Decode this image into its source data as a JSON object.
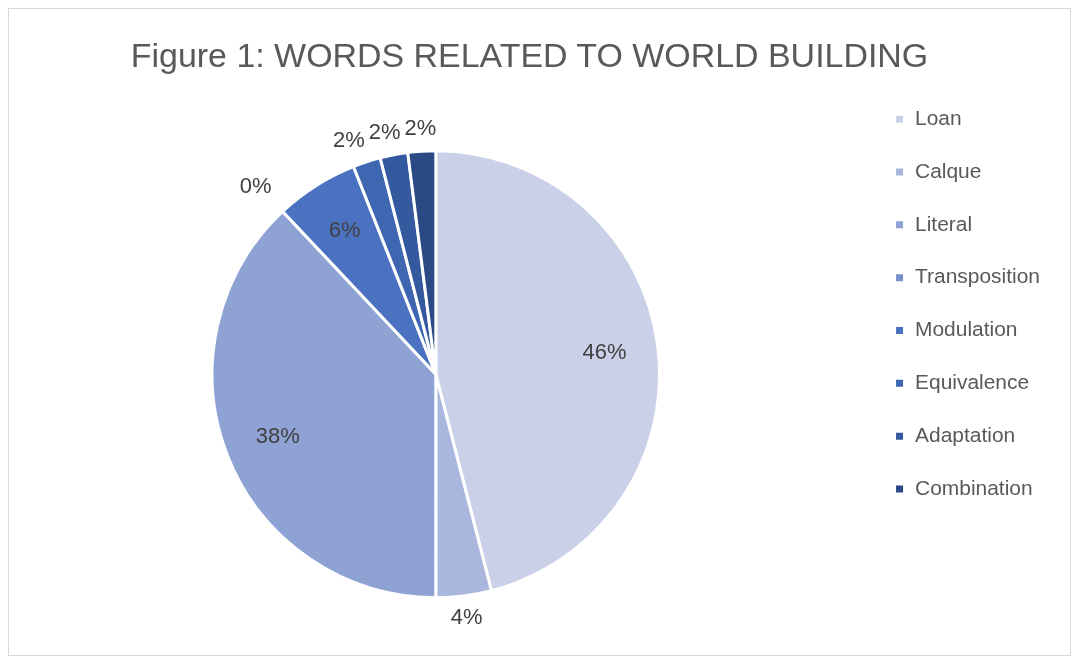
{
  "chart_data": {
    "type": "pie",
    "title": "Figure 1: WORDS RELATED TO WORLD BUILDING",
    "categories": [
      "Loan",
      "Calque",
      "Literal",
      "Transposition",
      "Modulation",
      "Equivalence",
      "Adaptation",
      "Combination"
    ],
    "values": [
      46,
      4,
      38,
      0,
      6,
      2,
      2,
      2
    ],
    "value_labels": [
      "46%",
      "4%",
      "38%",
      "0%",
      "6%",
      "2%",
      "2%",
      "2%"
    ],
    "colors": [
      "#c9d0e8",
      "#a9b7de",
      "#8fa2d4",
      "#7691cc",
      "#4a72c0",
      "#3f66b0",
      "#34599f",
      "#2b4a85"
    ],
    "legend": "right"
  }
}
